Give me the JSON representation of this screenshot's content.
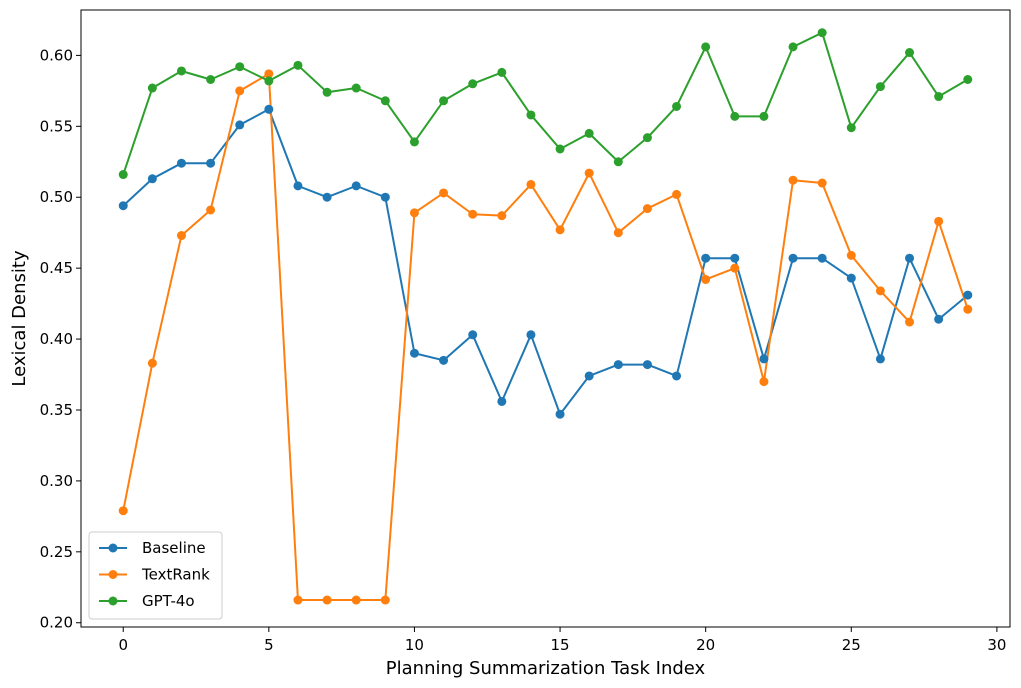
{
  "chart_data": {
    "type": "line",
    "title": "",
    "xlabel": "Planning Summarization Task Index",
    "ylabel": "Lexical Density",
    "xlim": [
      -1.45,
      30.45
    ],
    "ylim": [
      0.197,
      0.632
    ],
    "xticks": [
      0,
      5,
      10,
      15,
      20,
      25,
      30
    ],
    "xtick_labels": [
      "0",
      "5",
      "10",
      "15",
      "20",
      "25",
      "30"
    ],
    "yticks": [
      0.2,
      0.25,
      0.3,
      0.35,
      0.4,
      0.45,
      0.5,
      0.55,
      0.6
    ],
    "ytick_labels": [
      "0.20",
      "0.25",
      "0.30",
      "0.35",
      "0.40",
      "0.45",
      "0.50",
      "0.55",
      "0.60"
    ],
    "grid": false,
    "legend_position": "lower-left",
    "x": [
      0,
      1,
      2,
      3,
      4,
      5,
      6,
      7,
      8,
      9,
      10,
      11,
      12,
      13,
      14,
      15,
      16,
      17,
      18,
      19,
      20,
      21,
      22,
      23,
      24,
      25,
      26,
      27,
      28,
      29
    ],
    "series": [
      {
        "name": "Baseline",
        "color": "#1f77b4",
        "values": [
          0.494,
          0.513,
          0.524,
          0.524,
          0.551,
          0.562,
          0.508,
          0.5,
          0.508,
          0.5,
          0.39,
          0.385,
          0.403,
          0.356,
          0.403,
          0.347,
          0.374,
          0.382,
          0.382,
          0.374,
          0.457,
          0.457,
          0.386,
          0.457,
          0.457,
          0.443,
          0.386,
          0.457,
          0.414,
          0.431
        ]
      },
      {
        "name": "TextRank",
        "color": "#ff7f0e",
        "values": [
          0.279,
          0.383,
          0.473,
          0.491,
          0.575,
          0.587,
          0.216,
          0.216,
          0.216,
          0.216,
          0.489,
          0.503,
          0.488,
          0.487,
          0.509,
          0.477,
          0.517,
          0.475,
          0.492,
          0.502,
          0.442,
          0.45,
          0.37,
          0.512,
          0.51,
          0.459,
          0.434,
          0.412,
          0.483,
          0.421
        ]
      },
      {
        "name": "GPT-4o",
        "color": "#2ca02c",
        "values": [
          0.516,
          0.577,
          0.589,
          0.583,
          0.592,
          0.582,
          0.593,
          0.574,
          0.577,
          0.568,
          0.539,
          0.568,
          0.58,
          0.588,
          0.558,
          0.534,
          0.545,
          0.525,
          0.542,
          0.564,
          0.606,
          0.557,
          0.557,
          0.606,
          0.616,
          0.549,
          0.578,
          0.602,
          0.571,
          0.583
        ]
      }
    ]
  }
}
